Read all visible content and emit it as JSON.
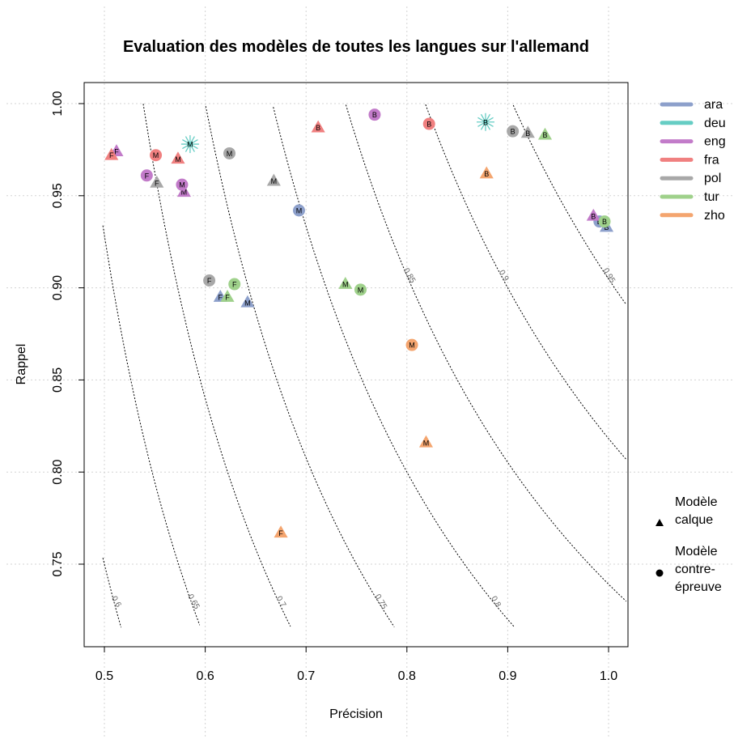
{
  "chart_data": {
    "type": "scatter",
    "title": "Evaluation des modèles de toutes les langues sur l'allemand",
    "xlabel": "Précision",
    "ylabel": "Rappel",
    "xlim": [
      0.5,
      1.0
    ],
    "ylim": [
      0.75,
      1.0
    ],
    "xticks": [
      "0.5",
      "0.6",
      "0.7",
      "0.8",
      "0.9",
      "1.0"
    ],
    "yticks": [
      "0.75",
      "0.80",
      "0.85",
      "0.90",
      "0.95",
      "1.00"
    ],
    "grid": true,
    "legend_position": "right",
    "contours": {
      "metric": "F-score",
      "levels": [
        0.6,
        0.65,
        0.7,
        0.75,
        0.8,
        0.85,
        0.9,
        0.95
      ],
      "labels": [
        "0.6",
        "0.65",
        "0.7",
        "0.75",
        "0.8",
        "0.85",
        "0.9",
        "0.95"
      ]
    },
    "series": [
      {
        "name": "ara",
        "color": "#8DA0CB",
        "points": [
          {
            "x": 0.615,
            "y": 0.895,
            "label": "F",
            "shape": "triangle"
          },
          {
            "x": 0.642,
            "y": 0.892,
            "label": "M",
            "shape": "triangle"
          },
          {
            "x": 0.693,
            "y": 0.942,
            "label": "M",
            "shape": "circle"
          },
          {
            "x": 0.998,
            "y": 0.933,
            "label": "B",
            "shape": "triangle"
          },
          {
            "x": 0.991,
            "y": 0.936,
            "label": "B",
            "shape": "circle"
          }
        ]
      },
      {
        "name": "deu",
        "color": "#66CDC4",
        "points": [
          {
            "x": 0.585,
            "y": 0.978,
            "label": "M",
            "shape": "star"
          },
          {
            "x": 0.878,
            "y": 0.99,
            "label": "B",
            "shape": "star"
          }
        ]
      },
      {
        "name": "eng",
        "color": "#C27BC9",
        "points": [
          {
            "x": 0.512,
            "y": 0.974,
            "label": "F",
            "shape": "triangle"
          },
          {
            "x": 0.542,
            "y": 0.961,
            "label": "F",
            "shape": "circle"
          },
          {
            "x": 0.579,
            "y": 0.952,
            "label": "M",
            "shape": "triangle"
          },
          {
            "x": 0.577,
            "y": 0.956,
            "label": "M",
            "shape": "circle"
          },
          {
            "x": 0.768,
            "y": 0.994,
            "label": "B",
            "shape": "circle"
          },
          {
            "x": 0.985,
            "y": 0.939,
            "label": "B",
            "shape": "triangle"
          }
        ]
      },
      {
        "name": "fra",
        "color": "#F08080",
        "points": [
          {
            "x": 0.507,
            "y": 0.972,
            "label": "F",
            "shape": "triangle"
          },
          {
            "x": 0.551,
            "y": 0.972,
            "label": "M",
            "shape": "circle"
          },
          {
            "x": 0.573,
            "y": 0.97,
            "label": "M",
            "shape": "triangle"
          },
          {
            "x": 0.712,
            "y": 0.987,
            "label": "B",
            "shape": "triangle"
          },
          {
            "x": 0.822,
            "y": 0.989,
            "label": "B",
            "shape": "circle"
          }
        ]
      },
      {
        "name": "pol",
        "color": "#A8A8A8",
        "points": [
          {
            "x": 0.552,
            "y": 0.957,
            "label": "F",
            "shape": "triangle"
          },
          {
            "x": 0.624,
            "y": 0.973,
            "label": "M",
            "shape": "circle"
          },
          {
            "x": 0.604,
            "y": 0.904,
            "label": "F",
            "shape": "circle"
          },
          {
            "x": 0.668,
            "y": 0.958,
            "label": "M",
            "shape": "triangle"
          },
          {
            "x": 0.905,
            "y": 0.985,
            "label": "B",
            "shape": "circle"
          },
          {
            "x": 0.92,
            "y": 0.984,
            "label": "B",
            "shape": "triangle"
          }
        ]
      },
      {
        "name": "tur",
        "color": "#9FD18B",
        "points": [
          {
            "x": 0.629,
            "y": 0.902,
            "label": "F",
            "shape": "circle"
          },
          {
            "x": 0.622,
            "y": 0.895,
            "label": "F",
            "shape": "triangle"
          },
          {
            "x": 0.739,
            "y": 0.902,
            "label": "M",
            "shape": "triangle"
          },
          {
            "x": 0.754,
            "y": 0.899,
            "label": "M",
            "shape": "circle"
          },
          {
            "x": 0.937,
            "y": 0.983,
            "label": "B",
            "shape": "triangle"
          },
          {
            "x": 0.996,
            "y": 0.936,
            "label": "B",
            "shape": "circle"
          }
        ]
      },
      {
        "name": "zho",
        "color": "#F4A56F",
        "points": [
          {
            "x": 0.675,
            "y": 0.767,
            "label": "F",
            "shape": "triangle"
          },
          {
            "x": 0.805,
            "y": 0.869,
            "label": "M",
            "shape": "circle"
          },
          {
            "x": 0.819,
            "y": 0.816,
            "label": "M",
            "shape": "triangle"
          },
          {
            "x": 0.879,
            "y": 0.962,
            "label": "B",
            "shape": "triangle"
          }
        ]
      }
    ],
    "shape_legend": [
      {
        "shape": "triangle",
        "label_lines": [
          "Modèle",
          "calque"
        ]
      },
      {
        "shape": "circle",
        "label_lines": [
          "Modèle",
          "contre-",
          "épreuve"
        ]
      }
    ]
  }
}
